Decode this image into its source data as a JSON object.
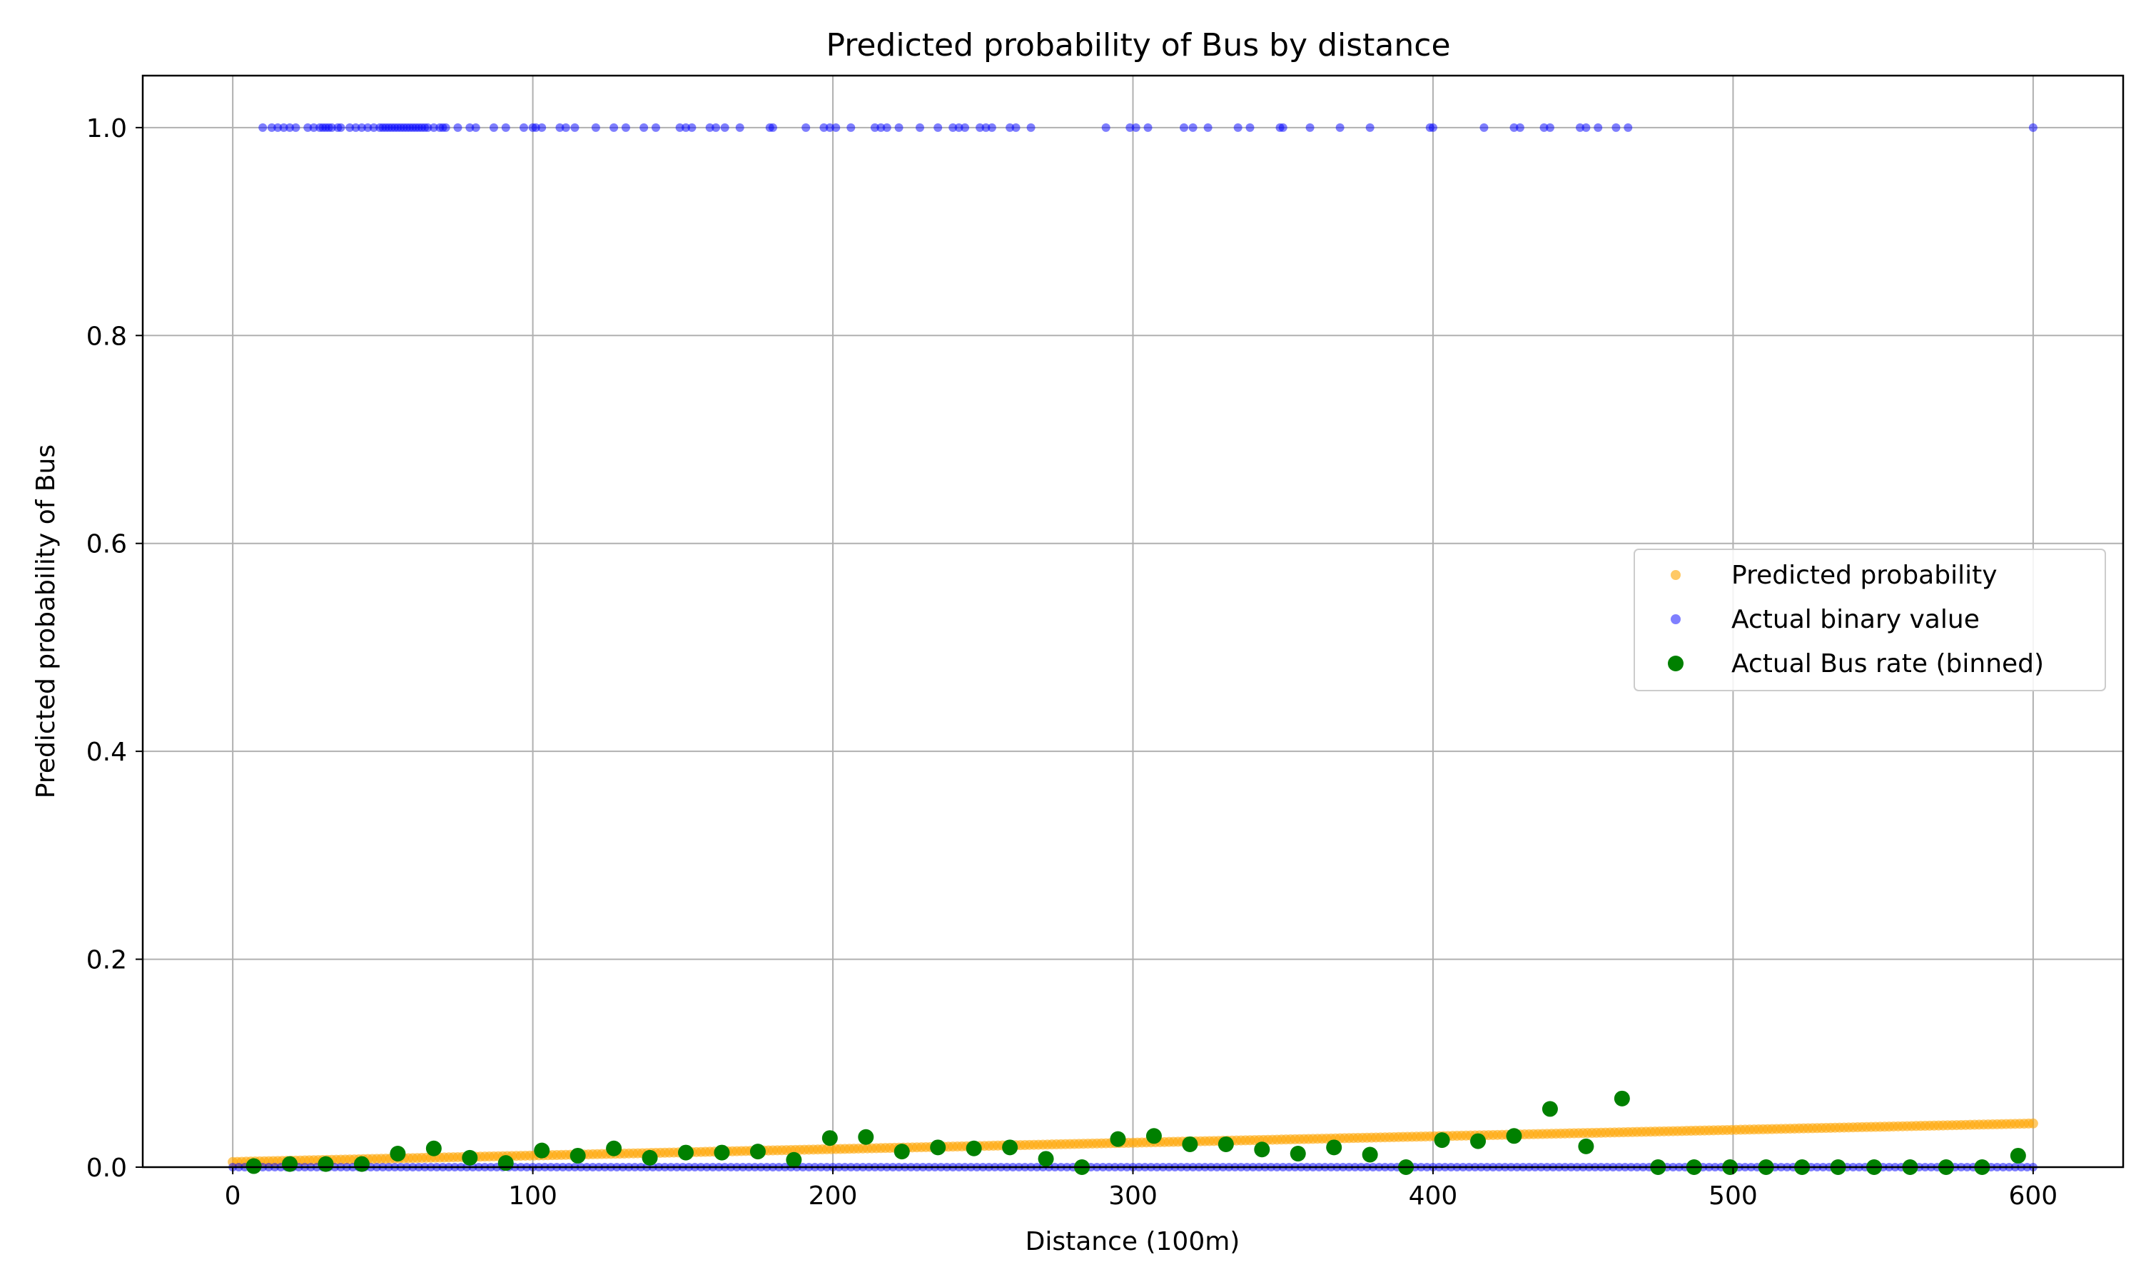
{
  "chart_data": {
    "type": "scatter",
    "title": "Predicted probability of Bus by distance",
    "xlabel": "Distance (100m)",
    "ylabel": "Predicted probability of Bus",
    "xlim": [
      -30,
      630
    ],
    "ylim": [
      0,
      1.05
    ],
    "grid": true,
    "legend_position": "center-right",
    "x_ticks": [
      0,
      100,
      200,
      300,
      400,
      500,
      600
    ],
    "x_tick_labels": [
      "0",
      "100",
      "200",
      "300",
      "400",
      "500",
      "600"
    ],
    "y_ticks": [
      0.0,
      0.2,
      0.4,
      0.6,
      0.8,
      1.0
    ],
    "y_tick_labels": [
      "0.0",
      "0.2",
      "0.4",
      "0.6",
      "0.8",
      "1.0"
    ],
    "colors": {
      "predicted": "#ffa500",
      "actual": "#0000ff",
      "binned": "#008000",
      "grid": "#b0b0b0"
    },
    "series": [
      {
        "name": "Predicted probability",
        "marker": "small-dot",
        "model": "linear",
        "x_range": [
          0,
          600
        ],
        "y_at_x0": 0.005,
        "y_at_x600": 0.042
      },
      {
        "name": "Actual binary value",
        "marker": "small-dot",
        "x_ones": [
          10,
          13,
          15,
          17,
          19,
          21,
          25,
          27,
          29,
          30,
          31,
          32,
          33,
          35,
          36,
          39,
          41,
          43,
          45,
          47,
          49,
          50,
          51,
          52,
          53,
          54,
          55,
          56,
          57,
          58,
          59,
          60,
          61,
          62,
          63,
          64,
          65,
          67,
          69,
          70,
          71,
          75,
          79,
          81,
          87,
          91,
          97,
          100,
          101,
          103,
          109,
          111,
          114,
          121,
          127,
          131,
          137,
          141,
          149,
          151,
          153,
          159,
          161,
          164,
          169,
          179,
          180,
          191,
          197,
          199,
          201,
          206,
          214,
          216,
          218,
          222,
          229,
          235,
          240,
          242,
          244,
          249,
          251,
          253,
          259,
          261,
          266,
          291,
          299,
          301,
          305,
          317,
          320,
          325,
          335,
          339,
          349,
          350,
          359,
          369,
          379,
          399,
          400,
          417,
          427,
          429,
          437,
          439,
          449,
          451,
          455,
          461,
          465,
          600
        ],
        "y_value_ones": 1,
        "y_value_zeros": 0,
        "x_zero_range": [
          0,
          600
        ]
      },
      {
        "name": "Actual Bus rate (binned)",
        "marker": "large-dot",
        "x": [
          7,
          19,
          31,
          43,
          55,
          67,
          79,
          91,
          103,
          115,
          127,
          139,
          151,
          163,
          175,
          187,
          199,
          211,
          223,
          235,
          247,
          259,
          271,
          283,
          295,
          307,
          319,
          331,
          343,
          355,
          367,
          379,
          391,
          403,
          415,
          427,
          439,
          451,
          463,
          475,
          487,
          499,
          511,
          523,
          535,
          547,
          559,
          571,
          583,
          595
        ],
        "y": [
          0.001,
          0.003,
          0.003,
          0.003,
          0.013,
          0.018,
          0.009,
          0.004,
          0.016,
          0.011,
          0.018,
          0.009,
          0.014,
          0.014,
          0.015,
          0.007,
          0.028,
          0.029,
          0.015,
          0.019,
          0.018,
          0.019,
          0.008,
          0.0,
          0.027,
          0.03,
          0.022,
          0.022,
          0.017,
          0.013,
          0.019,
          0.012,
          0.0,
          0.026,
          0.025,
          0.03,
          0.056,
          0.02,
          0.066,
          0.0,
          0.0,
          0.0,
          0.0,
          0.0,
          0.0,
          0.0,
          0.0,
          0.0,
          0.0,
          0.011
        ]
      }
    ]
  }
}
